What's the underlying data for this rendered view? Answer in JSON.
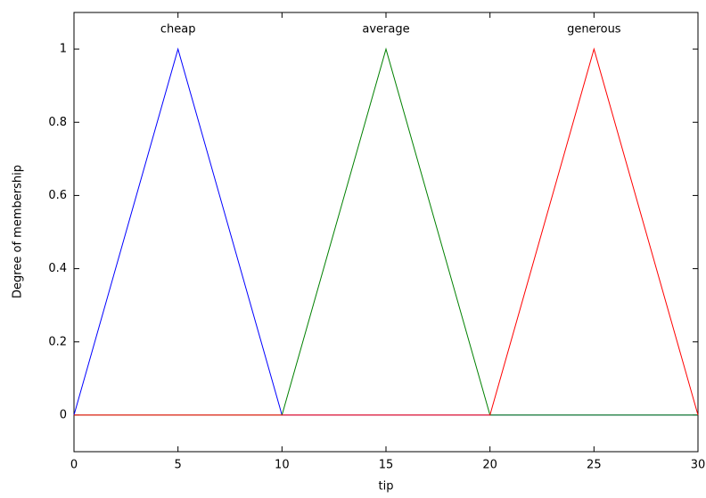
{
  "chart_data": {
    "type": "line",
    "x_label": "tip",
    "y_label": "Degree of membership",
    "x": [
      0,
      5,
      10,
      15,
      20,
      25,
      30
    ],
    "series": [
      {
        "name": "cheap",
        "color": "#0000ff",
        "values": [
          0,
          1,
          0,
          0,
          0,
          0,
          0
        ]
      },
      {
        "name": "average",
        "color": "#008000",
        "values": [
          0,
          0,
          0,
          1,
          0,
          0,
          0
        ]
      },
      {
        "name": "generous",
        "color": "#ff0000",
        "values": [
          0,
          0,
          0,
          0,
          0,
          1,
          0
        ]
      }
    ],
    "xlim": [
      0,
      30
    ],
    "xticks": [
      0,
      5,
      10,
      15,
      20,
      25,
      30
    ],
    "ylim": [
      -0.1,
      1.1
    ],
    "yticks": [
      0,
      0.2,
      0.4,
      0.6,
      0.8,
      1
    ],
    "grid": false
  }
}
